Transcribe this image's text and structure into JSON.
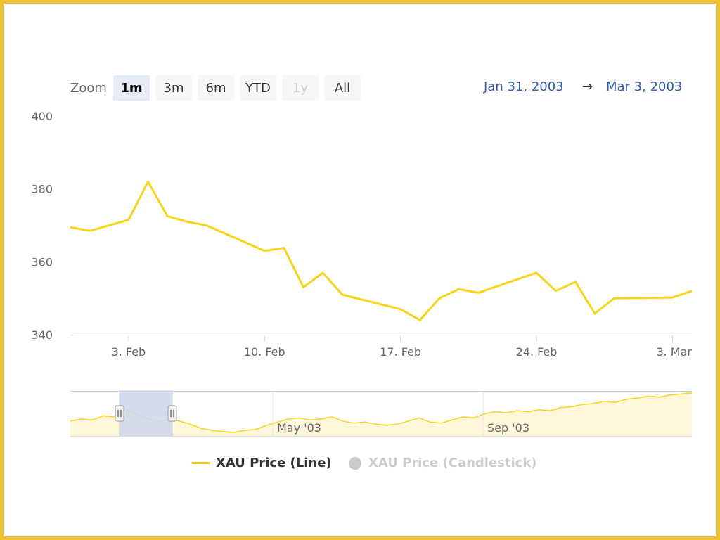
{
  "zoom": {
    "label": "Zoom",
    "buttons": [
      {
        "label": "1m",
        "state": "active"
      },
      {
        "label": "3m",
        "state": "normal"
      },
      {
        "label": "6m",
        "state": "normal"
      },
      {
        "label": "YTD",
        "state": "normal"
      },
      {
        "label": "1y",
        "state": "disabled"
      },
      {
        "label": "All",
        "state": "normal"
      }
    ]
  },
  "range": {
    "from": "Jan 31, 2003",
    "separator": "→",
    "to": "Mar 3, 2003"
  },
  "legend": {
    "line_label": "XAU Price (Line)",
    "candlestick_label": "XAU Price (Candlestick)"
  },
  "colors": {
    "line": "#f8d31a",
    "frame": "#f0c22e",
    "selected_zoom": "#e6ebf5",
    "range_text": "#335cad",
    "navigator_mask": "#ccd6eb",
    "disabled": "#cccccc"
  },
  "chart_data": {
    "type": "line",
    "series": [
      {
        "name": "XAU Price (Line)",
        "x": [
          "2003-01-31",
          "2003-02-01",
          "2003-02-03",
          "2003-02-04",
          "2003-02-05",
          "2003-02-06",
          "2003-02-07",
          "2003-02-10",
          "2003-02-11",
          "2003-02-12",
          "2003-02-13",
          "2003-02-14",
          "2003-02-17",
          "2003-02-18",
          "2003-02-19",
          "2003-02-20",
          "2003-02-21",
          "2003-02-24",
          "2003-02-25",
          "2003-02-26",
          "2003-02-27",
          "2003-02-28",
          "2003-03-03",
          "2003-03-04"
        ],
        "y": [
          369.5,
          368.5,
          371.5,
          382.0,
          372.5,
          371.0,
          370.0,
          363.0,
          363.8,
          353.0,
          357.0,
          351.0,
          347.0,
          344.0,
          350.0,
          352.5,
          351.5,
          357.0,
          352.0,
          354.5,
          345.8,
          350.0,
          350.2,
          352.0
        ]
      }
    ],
    "x_ticks": [
      "3. Feb",
      "10. Feb",
      "17. Feb",
      "24. Feb",
      "3. Mar"
    ],
    "x_tick_dates": [
      "2003-02-03",
      "2003-02-10",
      "2003-02-17",
      "2003-02-24",
      "2003-03-03"
    ],
    "xlim": [
      "2003-01-31",
      "2003-03-04"
    ],
    "y_ticks": [
      "340",
      "360",
      "380",
      "400"
    ],
    "ylim": [
      340,
      400
    ],
    "grid": false,
    "legend_position": "bottom",
    "navigator": {
      "labels": [
        "May '03",
        "Sep '03"
      ],
      "selected_range": [
        "Jan 31, 2003",
        "Mar 3, 2003"
      ],
      "y": [
        353,
        355,
        354,
        358,
        357,
        365,
        360,
        356,
        352,
        355,
        353,
        350,
        346,
        344,
        343,
        342,
        344,
        345,
        349,
        352,
        355,
        356,
        354,
        355,
        357,
        353,
        351,
        352,
        350,
        349,
        350,
        353,
        356,
        352,
        351,
        354,
        357,
        356,
        360,
        362,
        361,
        363,
        362,
        364,
        363,
        366,
        367,
        369,
        370,
        372,
        371,
        374,
        375,
        377,
        376,
        378,
        379,
        380
      ]
    }
  }
}
